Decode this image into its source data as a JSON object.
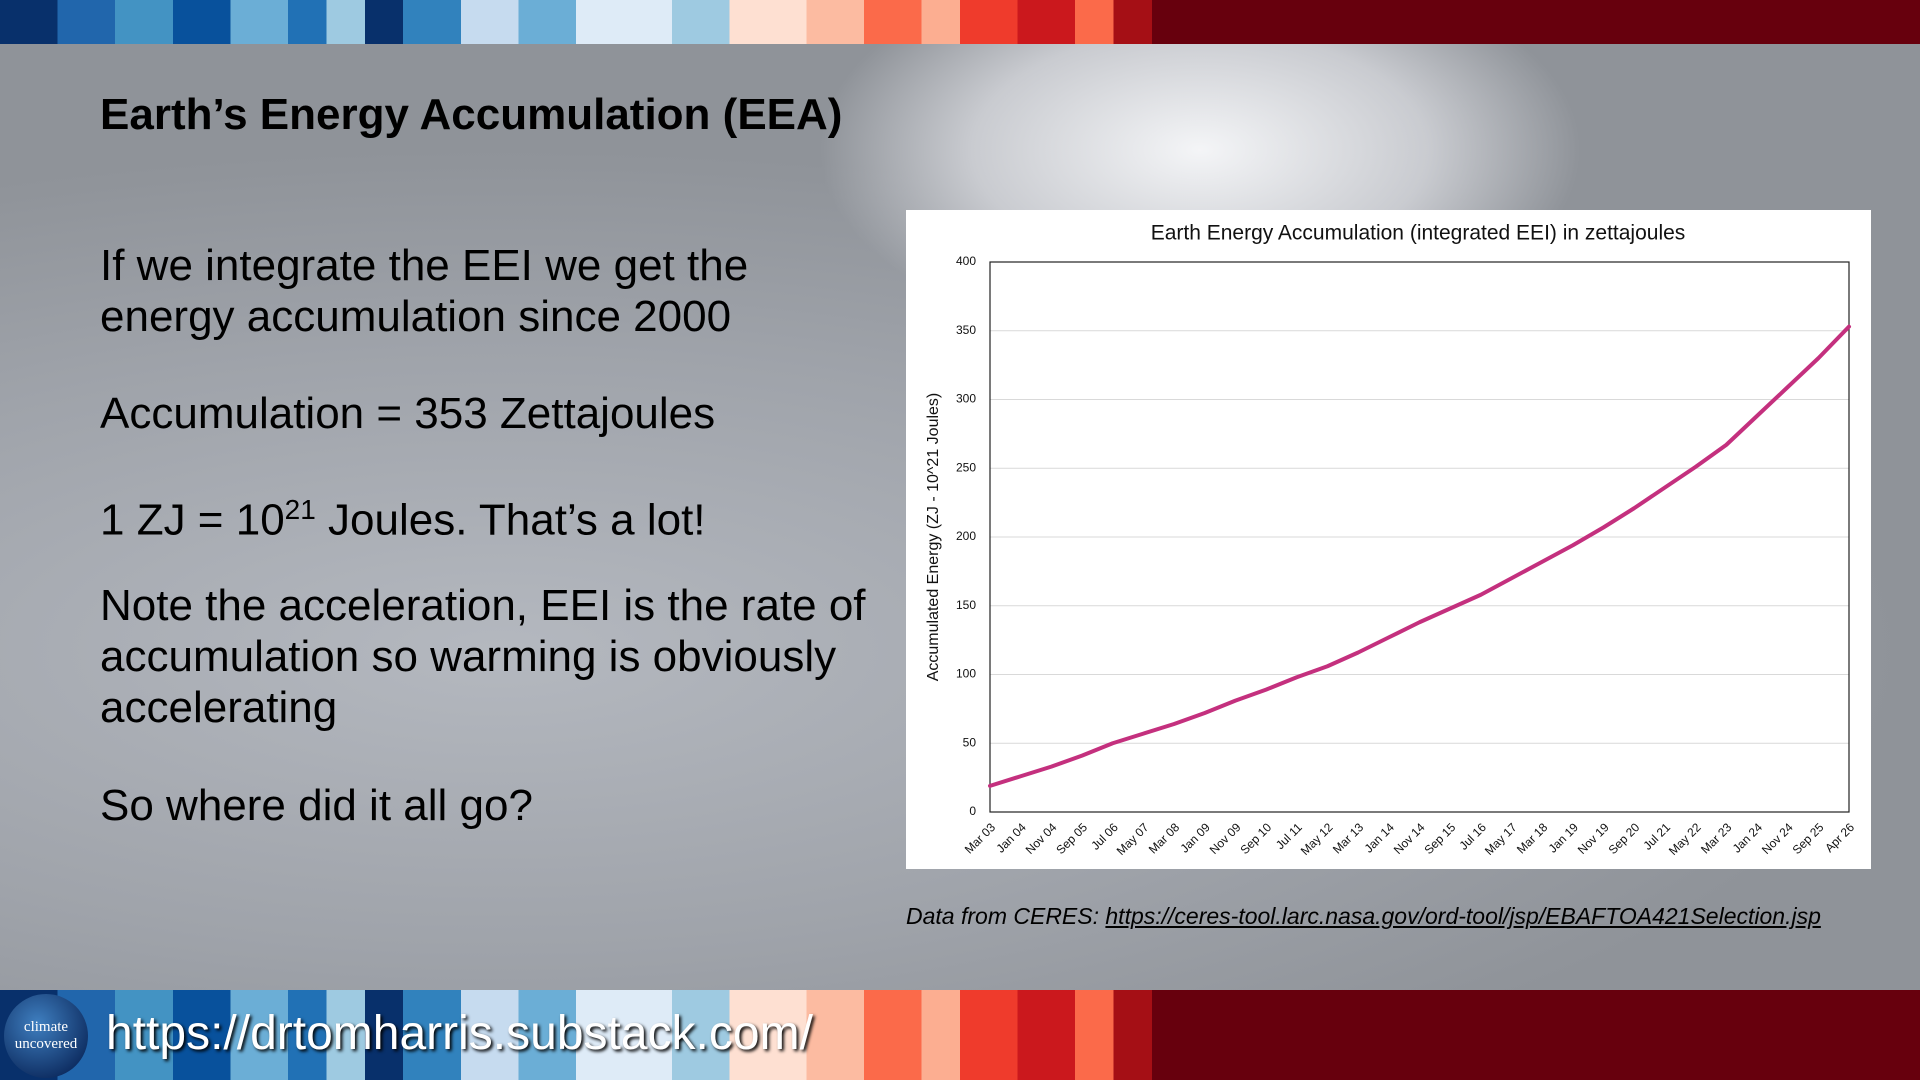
{
  "slide": {
    "title": "Earth’s Energy Accumulation (EEA)",
    "paragraph_1": "If we integrate the EEI we get the energy accumulation since 2000",
    "paragraph_2": "Accumulation = 353 Zettajoules",
    "paragraph_3": [
      "1 ZJ = 10",
      "21",
      " Joules. That’s a lot!"
    ],
    "paragraph_4": "Note the acceleration, EEI is the rate of accumulation so warming is obviously accelerating",
    "paragraph_5": "So where did it all go?",
    "source_prefix": "Data from CERES: ",
    "source_url": "https://ceres-tool.larc.nasa.gov/ord-tool/jsp/EBAFTOA421Selection.jsp",
    "logo": [
      "climate",
      "uncovered"
    ],
    "footer_url": "https://drtomharris.substack.com/"
  },
  "chart_data": {
    "type": "line",
    "title": "Earth Energy Accumulation (integrated EEI) in zettajoules",
    "y_label": "Accumulated Energy (ZJ - 10^21 Joules)",
    "categories": [
      "Mar 03",
      "Jan 04",
      "Nov 04",
      "Sep 05",
      "Jul 06",
      "May 07",
      "Mar 08",
      "Jan 09",
      "Nov 09",
      "Sep 10",
      "Jul 11",
      "May 12",
      "Mar 13",
      "Jan 14",
      "Nov 14",
      "Sep 15",
      "Jul 16",
      "May 17",
      "Mar 18",
      "Jan 19",
      "Nov 19",
      "Sep 20",
      "Jul 21",
      "May 22",
      "Mar 23",
      "Jan 24",
      "Nov 24",
      "Sep 25",
      "Apr 26"
    ],
    "series": [
      {
        "name": "Accumulated Energy",
        "color": "#c4307e",
        "values": [
          19,
          26,
          33,
          41,
          50,
          57,
          64,
          72,
          81,
          89,
          98,
          106,
          116,
          127,
          138,
          148,
          158,
          170,
          182,
          194,
          207,
          221,
          236,
          251,
          267,
          288,
          309,
          330,
          353
        ]
      }
    ],
    "ylim": [
      0,
      400
    ],
    "yticks": [
      0,
      50,
      100,
      150,
      200,
      250,
      300,
      350,
      400
    ],
    "grid": true
  }
}
